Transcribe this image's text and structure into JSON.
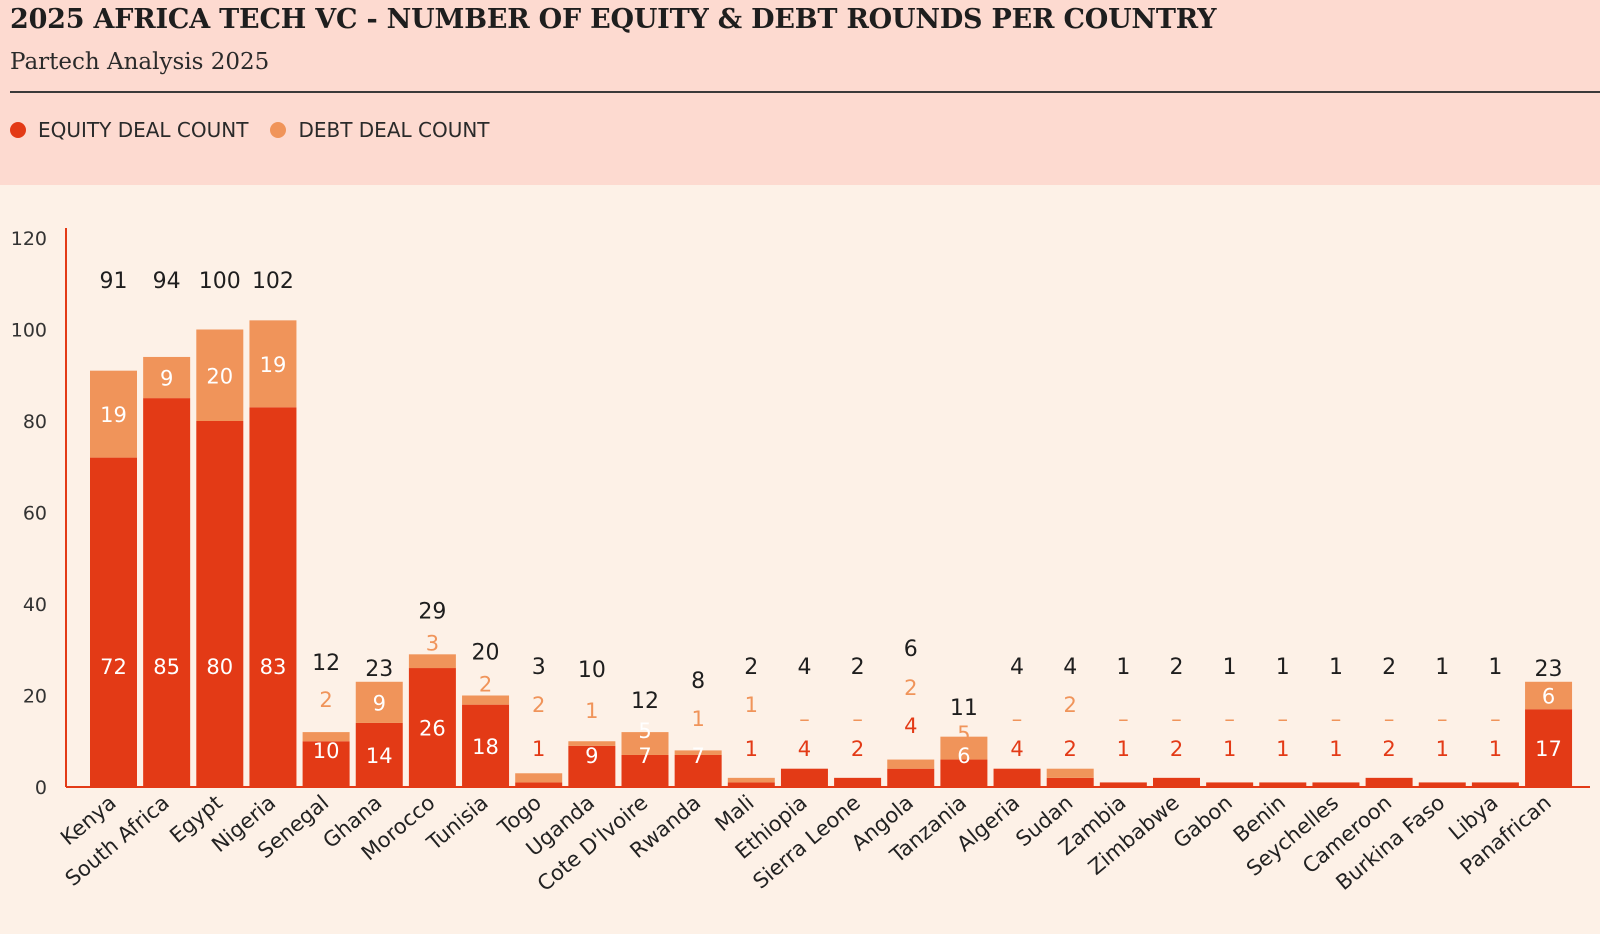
{
  "header": {
    "title": "2025 AFRICA TECH VC - NUMBER OF EQUITY & DEBT ROUNDS PER COUNTRY",
    "subtitle": "Partech Analysis 2025"
  },
  "legend": [
    {
      "label": "EQUITY DEAL COUNT",
      "color": "#e33a16"
    },
    {
      "label": "DEBT DEAL COUNT",
      "color": "#f0945a"
    }
  ],
  "chart_data": {
    "type": "bar",
    "stacked": true,
    "title": "2025 AFRICA TECH VC - NUMBER OF EQUITY & DEBT ROUNDS PER COUNTRY",
    "subtitle": "Partech Analysis 2025",
    "ylim": [
      0,
      120
    ],
    "yticks": [
      0,
      20,
      40,
      60,
      80,
      100,
      120
    ],
    "legend_position": "top-left",
    "grid": false,
    "categories": [
      "Kenya",
      "South Africa",
      "Egypt",
      "Nigeria",
      "Senegal",
      "Ghana",
      "Morocco",
      "Tunisia",
      "Togo",
      "Uganda",
      "Cote D'Ivoire",
      "Rwanda",
      "Mali",
      "Ethiopia",
      "Sierra Leone",
      "Angola",
      "Tanzania",
      "Algeria",
      "Sudan",
      "Zambia",
      "Zimbabwe",
      "Gabon",
      "Benin",
      "Seychelles",
      "Cameroon",
      "Burkina Faso",
      "Libya",
      "Panafrican"
    ],
    "series": [
      {
        "name": "EQUITY DEAL COUNT",
        "color": "#e33a16",
        "values": [
          72,
          85,
          80,
          83,
          10,
          14,
          26,
          18,
          1,
          9,
          7,
          7,
          1,
          4,
          2,
          4,
          6,
          4,
          2,
          1,
          2,
          1,
          1,
          1,
          2,
          1,
          1,
          17
        ]
      },
      {
        "name": "DEBT DEAL COUNT",
        "color": "#f0945a",
        "values": [
          19,
          9,
          20,
          19,
          2,
          9,
          3,
          2,
          2,
          1,
          5,
          1,
          1,
          null,
          null,
          2,
          5,
          null,
          2,
          null,
          null,
          null,
          null,
          null,
          null,
          null,
          null,
          6
        ]
      }
    ],
    "totals": [
      91,
      94,
      100,
      102,
      12,
      23,
      29,
      20,
      3,
      10,
      12,
      8,
      2,
      4,
      2,
      6,
      11,
      4,
      4,
      1,
      2,
      1,
      1,
      1,
      2,
      1,
      1,
      23
    ],
    "missing_value_label": "–"
  }
}
